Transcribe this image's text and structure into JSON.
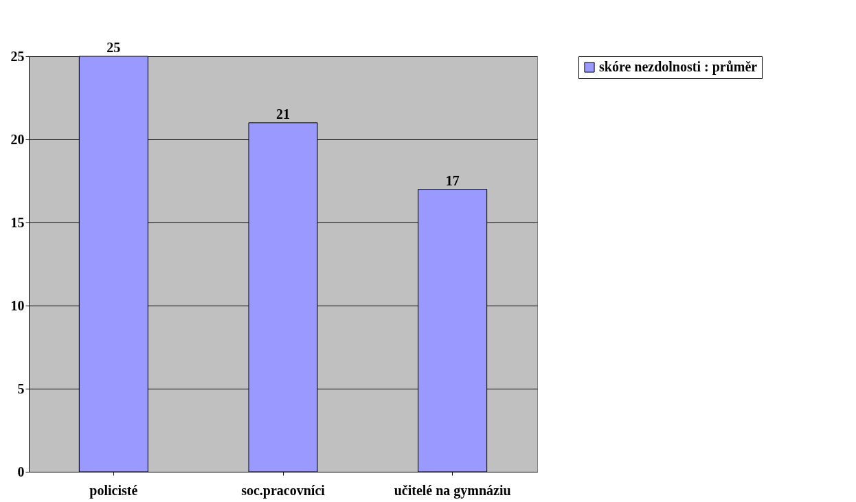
{
  "chart_data": {
    "type": "bar",
    "categories": [
      "policisté",
      "soc.pracovníci",
      "učitelé na gymnáziu"
    ],
    "series": [
      {
        "name": "skóre nezdolnosti : průměr",
        "color": "#9999ff",
        "values": [
          25,
          21,
          17
        ]
      }
    ],
    "ylim": [
      0,
      25
    ],
    "yticks": [
      0,
      5,
      10,
      15,
      20,
      25
    ],
    "grid": "y",
    "legend": "right",
    "data_labels": true
  }
}
